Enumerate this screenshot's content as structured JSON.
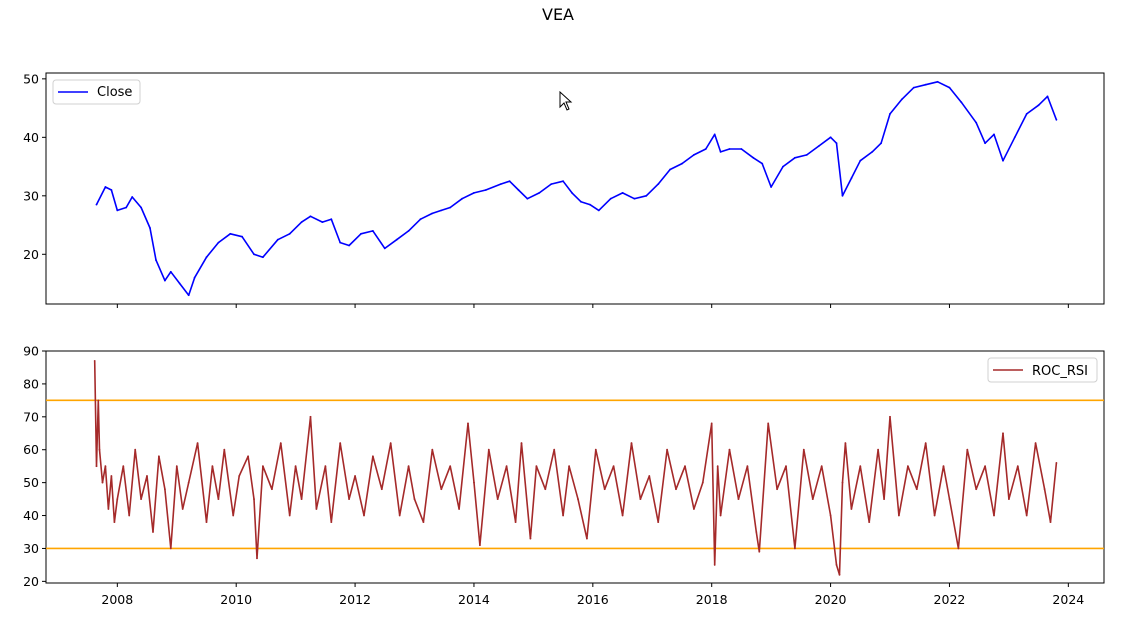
{
  "figure_title": "VEA",
  "colors": {
    "close_line": "#0000ff",
    "roc_line": "#a52a2a",
    "threshold_line": "#ffa500",
    "axes": "#000000"
  },
  "chart_data": [
    {
      "type": "line",
      "title": "",
      "xlabel": "",
      "ylabel": "",
      "xlim": [
        2006.8,
        2024.6
      ],
      "ylim": [
        11.5,
        51.0
      ],
      "yticks": [
        20,
        30,
        40,
        50
      ],
      "xticks": [
        2008,
        2010,
        2012,
        2014,
        2016,
        2018,
        2020,
        2022,
        2024
      ],
      "legend_position": "upper left",
      "grid": false,
      "series": [
        {
          "name": "Close",
          "color": "#0000ff",
          "x": [
            2007.65,
            2007.8,
            2007.9,
            2008.0,
            2008.15,
            2008.25,
            2008.4,
            2008.55,
            2008.65,
            2008.8,
            2008.9,
            2009.05,
            2009.2,
            2009.3,
            2009.5,
            2009.7,
            2009.9,
            2010.1,
            2010.3,
            2010.45,
            2010.7,
            2010.9,
            2011.1,
            2011.25,
            2011.45,
            2011.6,
            2011.75,
            2011.9,
            2012.1,
            2012.3,
            2012.5,
            2012.7,
            2012.9,
            2013.1,
            2013.3,
            2013.45,
            2013.6,
            2013.8,
            2014.0,
            2014.2,
            2014.45,
            2014.6,
            2014.75,
            2014.9,
            2015.1,
            2015.3,
            2015.5,
            2015.65,
            2015.8,
            2015.95,
            2016.1,
            2016.3,
            2016.5,
            2016.7,
            2016.9,
            2017.1,
            2017.3,
            2017.5,
            2017.7,
            2017.9,
            2018.05,
            2018.15,
            2018.3,
            2018.5,
            2018.7,
            2018.85,
            2019.0,
            2019.2,
            2019.4,
            2019.6,
            2019.8,
            2020.0,
            2020.1,
            2020.2,
            2020.35,
            2020.5,
            2020.7,
            2020.85,
            2021.0,
            2021.2,
            2021.4,
            2021.6,
            2021.8,
            2022.0,
            2022.2,
            2022.45,
            2022.6,
            2022.75,
            2022.9,
            2023.1,
            2023.3,
            2023.5,
            2023.65,
            2023.8
          ],
          "values": [
            28.5,
            31.5,
            31.0,
            27.5,
            28.0,
            29.8,
            28.0,
            24.5,
            19.0,
            15.5,
            17.0,
            15.0,
            13.0,
            16.0,
            19.5,
            22.0,
            23.5,
            23.0,
            20.0,
            19.5,
            22.5,
            23.5,
            25.5,
            26.5,
            25.5,
            26.0,
            22.0,
            21.5,
            23.5,
            24.0,
            21.0,
            22.5,
            24.0,
            26.0,
            27.0,
            27.5,
            28.0,
            29.5,
            30.5,
            31.0,
            32.0,
            32.5,
            31.0,
            29.5,
            30.5,
            32.0,
            32.5,
            30.5,
            29.0,
            28.5,
            27.5,
            29.5,
            30.5,
            29.5,
            30.0,
            32.0,
            34.5,
            35.5,
            37.0,
            38.0,
            40.5,
            37.5,
            38.0,
            38.0,
            36.5,
            35.5,
            31.5,
            35.0,
            36.5,
            37.0,
            38.5,
            40.0,
            39.0,
            30.0,
            33.0,
            36.0,
            37.5,
            39.0,
            44.0,
            46.5,
            48.5,
            49.0,
            49.5,
            48.5,
            46.0,
            42.5,
            39.0,
            40.5,
            36.0,
            40.0,
            44.0,
            45.5,
            47.0,
            43.0
          ]
        }
      ]
    },
    {
      "type": "line",
      "title": "",
      "xlabel": "",
      "ylabel": "",
      "xlim": [
        2006.8,
        2024.6
      ],
      "ylim": [
        19.5,
        90.0
      ],
      "yticks": [
        20,
        30,
        40,
        50,
        60,
        70,
        80,
        90
      ],
      "xticks": [
        2008,
        2010,
        2012,
        2014,
        2016,
        2018,
        2020,
        2022,
        2024
      ],
      "xtick_labels": [
        "2008",
        "2010",
        "2012",
        "2014",
        "2016",
        "2018",
        "2020",
        "2022",
        "2024"
      ],
      "legend_position": "upper right",
      "grid": false,
      "hlines": [
        75,
        30
      ],
      "series": [
        {
          "name": "ROC_RSI",
          "color": "#a52a2a",
          "x": [
            2007.62,
            2007.65,
            2007.68,
            2007.7,
            2007.75,
            2007.8,
            2007.85,
            2007.9,
            2007.95,
            2008.0,
            2008.1,
            2008.2,
            2008.3,
            2008.4,
            2008.5,
            2008.6,
            2008.7,
            2008.8,
            2008.9,
            2009.0,
            2009.1,
            2009.2,
            2009.35,
            2009.5,
            2009.6,
            2009.7,
            2009.8,
            2009.95,
            2010.05,
            2010.2,
            2010.3,
            2010.35,
            2010.45,
            2010.6,
            2010.75,
            2010.9,
            2011.0,
            2011.1,
            2011.25,
            2011.35,
            2011.5,
            2011.6,
            2011.75,
            2011.9,
            2012.0,
            2012.15,
            2012.3,
            2012.45,
            2012.6,
            2012.75,
            2012.9,
            2013.0,
            2013.15,
            2013.3,
            2013.45,
            2013.6,
            2013.75,
            2013.9,
            2014.0,
            2014.1,
            2014.25,
            2014.4,
            2014.55,
            2014.7,
            2014.8,
            2014.95,
            2015.05,
            2015.2,
            2015.35,
            2015.5,
            2015.6,
            2015.75,
            2015.9,
            2016.05,
            2016.2,
            2016.35,
            2016.5,
            2016.65,
            2016.8,
            2016.95,
            2017.1,
            2017.25,
            2017.4,
            2017.55,
            2017.7,
            2017.85,
            2018.0,
            2018.05,
            2018.1,
            2018.15,
            2018.3,
            2018.45,
            2018.6,
            2018.75,
            2018.8,
            2018.95,
            2019.1,
            2019.25,
            2019.4,
            2019.55,
            2019.7,
            2019.85,
            2020.0,
            2020.1,
            2020.15,
            2020.2,
            2020.25,
            2020.35,
            2020.5,
            2020.65,
            2020.8,
            2020.9,
            2021.0,
            2021.15,
            2021.3,
            2021.45,
            2021.6,
            2021.75,
            2021.9,
            2022.0,
            2022.15,
            2022.3,
            2022.45,
            2022.6,
            2022.75,
            2022.9,
            2023.0,
            2023.15,
            2023.3,
            2023.45,
            2023.6,
            2023.7,
            2023.8
          ],
          "values": [
            87,
            55,
            75,
            60,
            50,
            55,
            42,
            52,
            38,
            45,
            55,
            40,
            60,
            45,
            52,
            35,
            58,
            48,
            30,
            55,
            42,
            50,
            62,
            38,
            55,
            45,
            60,
            40,
            52,
            58,
            45,
            27,
            55,
            48,
            62,
            40,
            55,
            45,
            70,
            42,
            55,
            38,
            62,
            45,
            52,
            40,
            58,
            48,
            62,
            40,
            55,
            45,
            38,
            60,
            48,
            55,
            42,
            68,
            50,
            31,
            60,
            45,
            55,
            38,
            62,
            33,
            55,
            48,
            60,
            40,
            55,
            45,
            33,
            60,
            48,
            55,
            40,
            62,
            45,
            52,
            38,
            60,
            48,
            55,
            42,
            50,
            68,
            25,
            55,
            40,
            60,
            45,
            55,
            35,
            29,
            68,
            48,
            55,
            30,
            60,
            45,
            55,
            40,
            25,
            22,
            50,
            62,
            42,
            55,
            38,
            60,
            45,
            70,
            40,
            55,
            48,
            62,
            40,
            55,
            45,
            30,
            60,
            48,
            55,
            40,
            65,
            45,
            55,
            40,
            62,
            48,
            38,
            56
          ]
        }
      ]
    }
  ]
}
